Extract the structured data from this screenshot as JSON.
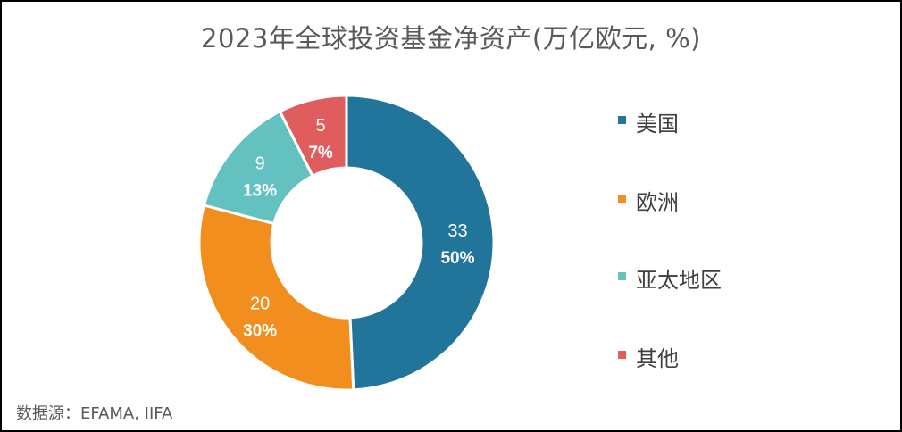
{
  "title": "2023年全球投资基金净资产(万亿欧元, %)",
  "source": "数据源：EFAMA, IIFA",
  "chart_data": {
    "type": "pie",
    "donut": true,
    "title": "2023年全球投资基金净资产(万亿欧元, %)",
    "categories": [
      "美国",
      "欧洲",
      "亚太地区",
      "其他"
    ],
    "values": [
      33,
      20,
      9,
      5
    ],
    "percent_labels": [
      "50%",
      "30%",
      "13%",
      "7%"
    ],
    "colors": [
      "#21759B",
      "#F28E1D",
      "#63C2C0",
      "#E05D5D"
    ],
    "legend_position": "right"
  }
}
